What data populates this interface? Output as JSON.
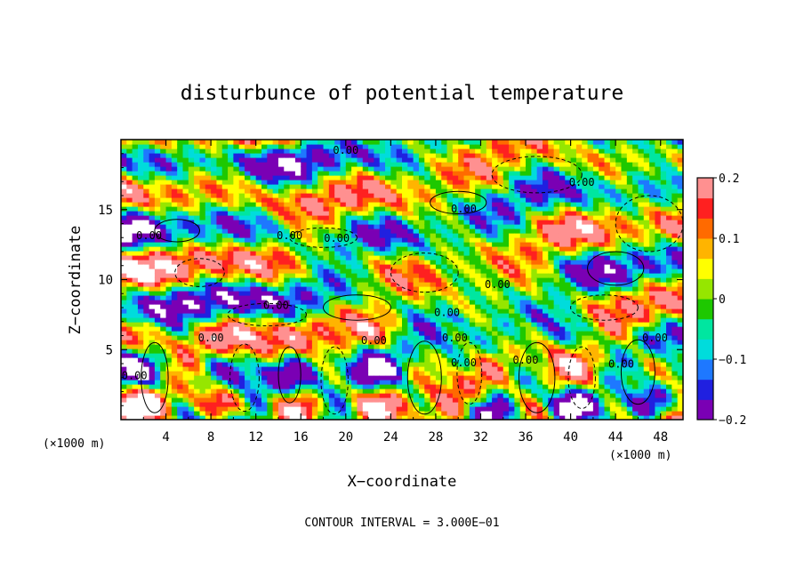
{
  "chart_data": {
    "type": "heatmap",
    "title": "disturbunce of potential temperature",
    "xlabel": "X−coordinate",
    "ylabel": "Z−coordinate",
    "x_unit_left": "(×1000 m)",
    "x_unit_right": "(×1000 m)",
    "x_ticks": [
      "4",
      "8",
      "12",
      "16",
      "20",
      "24",
      "28",
      "32",
      "36",
      "40",
      "44",
      "48"
    ],
    "x_tick_values": [
      4,
      8,
      12,
      16,
      20,
      24,
      28,
      32,
      36,
      40,
      44,
      48
    ],
    "xlim": [
      0,
      50
    ],
    "y_ticks": [
      "5",
      "10",
      "15"
    ],
    "y_tick_values": [
      5,
      10,
      15
    ],
    "ylim": [
      0,
      20
    ],
    "colorbar": {
      "ticks": [
        "0.2",
        "0.1",
        "0",
        "−0.1",
        "−0.2"
      ],
      "tick_values": [
        0.2,
        0.1,
        0,
        -0.1,
        -0.2
      ],
      "range": [
        -0.2,
        0.2
      ],
      "colors": [
        "#7a00b4",
        "#2020e0",
        "#1e78ff",
        "#00dcdc",
        "#00e6a0",
        "#1ec800",
        "#96e600",
        "#ffff00",
        "#ffb400",
        "#ff6a00",
        "#ff2020",
        "#ff9090"
      ]
    },
    "contour_labels": [
      "0.00",
      "0.00",
      "0.00",
      "0.00",
      "0.00",
      "0.00",
      "0.00",
      "0.00",
      "0.00",
      "0.00",
      "0.00",
      "0.00",
      "0.00",
      "0.00",
      "0.00",
      "0.00",
      "0.00"
    ],
    "footnote": "CONTOUR INTERVAL = 3.000E−01"
  }
}
